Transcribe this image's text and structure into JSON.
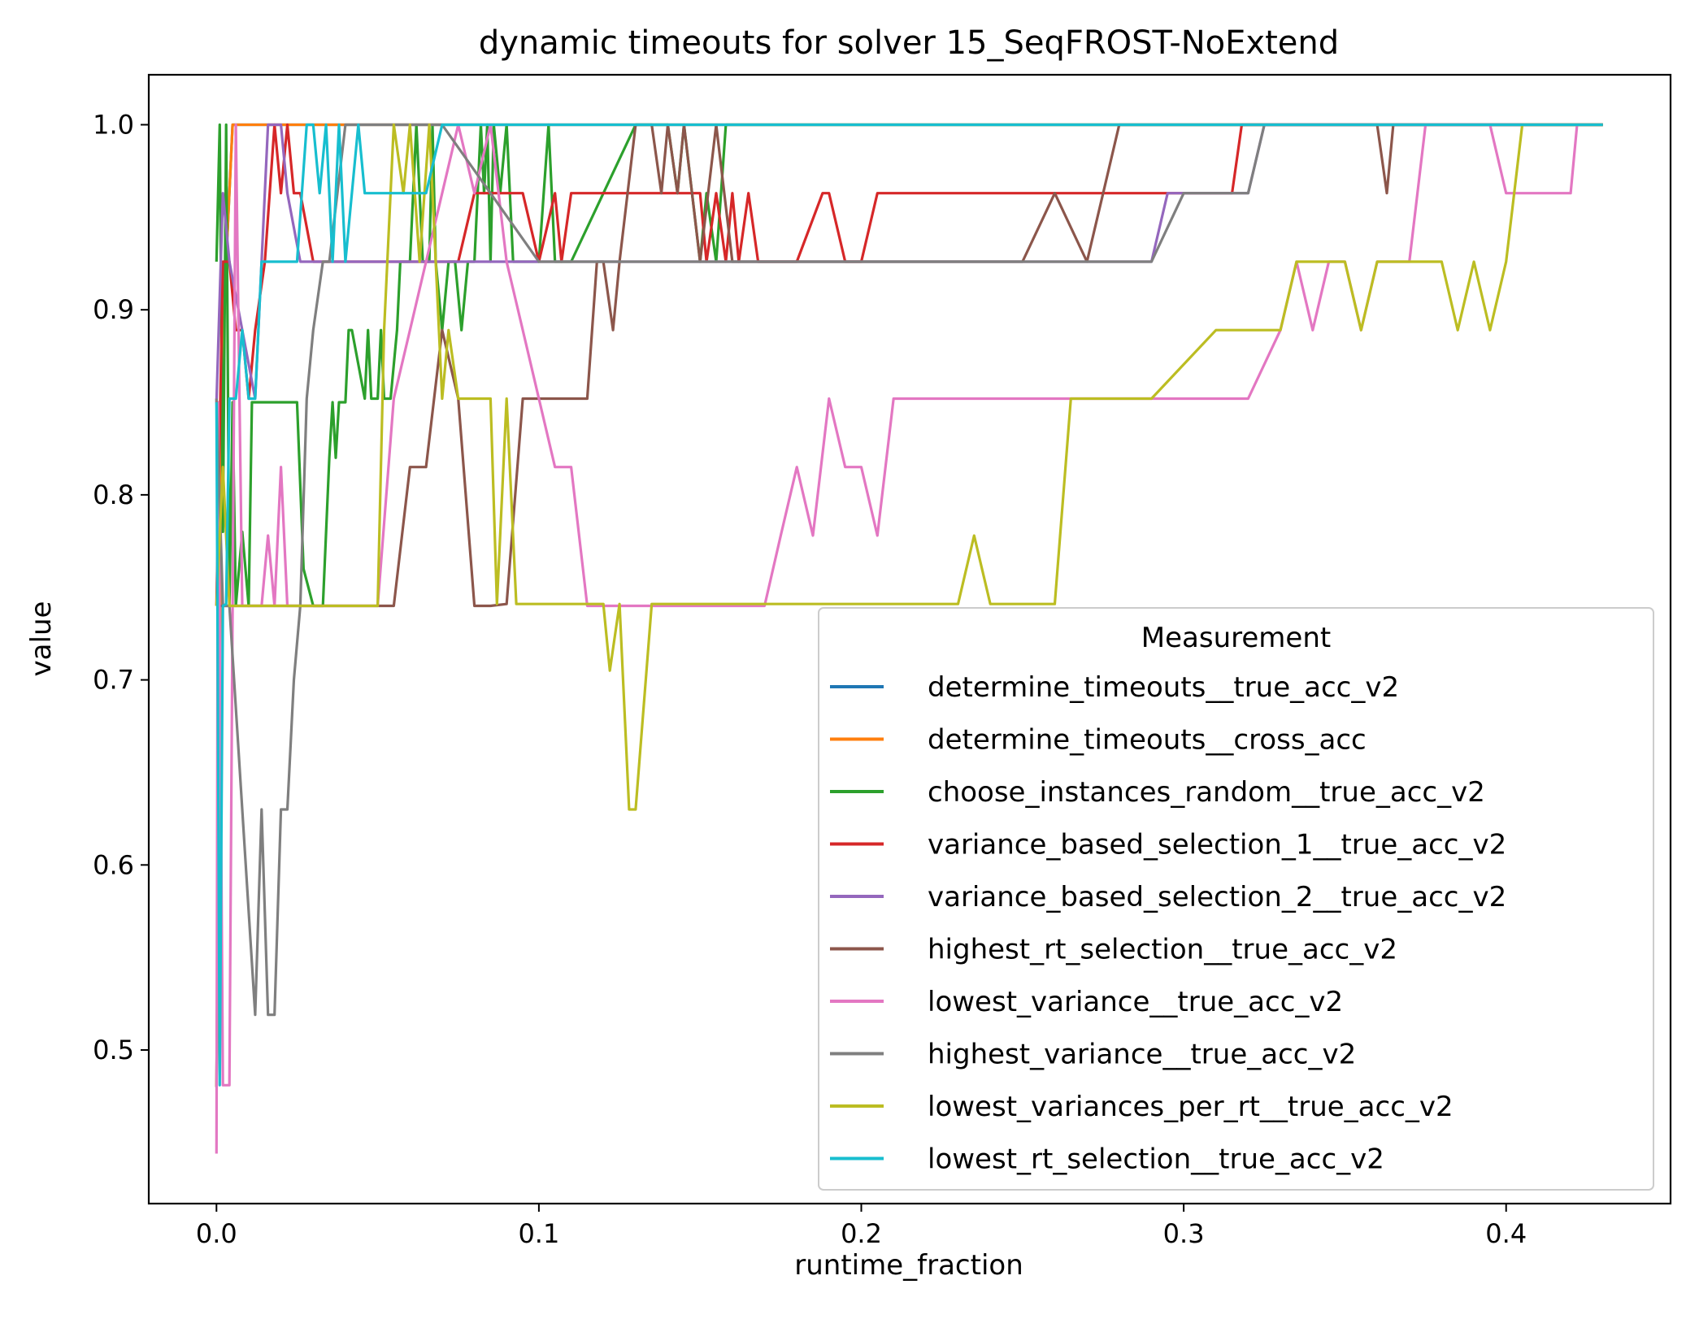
{
  "chart_data": {
    "type": "line",
    "title": "dynamic timeouts for solver 15_SeqFROST-NoExtend",
    "xlabel": "runtime_fraction",
    "ylabel": "value",
    "xlim": [
      -0.021,
      0.451
    ],
    "ylim": [
      0.417,
      1.027
    ],
    "xticks": [
      0.0,
      0.1,
      0.2,
      0.3,
      0.4
    ],
    "xtick_labels": [
      "0.0",
      "0.1",
      "0.2",
      "0.3",
      "0.4"
    ],
    "yticks": [
      0.5,
      0.6,
      0.7,
      0.8,
      0.9,
      1.0
    ],
    "ytick_labels": [
      "0.5",
      "0.6",
      "0.7",
      "0.8",
      "0.9",
      "1.0"
    ],
    "grid": false,
    "legend": {
      "title": "Measurement",
      "placement": "lower-right"
    },
    "series": [
      {
        "name": "determine_timeouts__true_acc_v2",
        "color": "#1f77b4",
        "x": [
          0,
          0.001,
          0.0015,
          0.003,
          0.005,
          0.43
        ],
        "y": [
          0.48,
          0.7,
          0.85,
          0.926,
          1.0,
          1.0
        ]
      },
      {
        "name": "determine_timeouts__cross_acc",
        "color": "#ff7f0e",
        "x": [
          0,
          0.001,
          0.0015,
          0.003,
          0.005,
          0.43
        ],
        "y": [
          0.48,
          0.7,
          0.85,
          0.926,
          1.0,
          1.0
        ]
      },
      {
        "name": "choose_instances_random__true_acc_v2",
        "color": "#2ca02c",
        "x": [
          0,
          0.001,
          0.002,
          0.003,
          0.004,
          0.005,
          0.006,
          0.008,
          0.01,
          0.011,
          0.012,
          0.015,
          0.025,
          0.027,
          0.03,
          0.033,
          0.035,
          0.036,
          0.037,
          0.038,
          0.04,
          0.041,
          0.042,
          0.046,
          0.047,
          0.048,
          0.05,
          0.051,
          0.052,
          0.054,
          0.056,
          0.057,
          0.058,
          0.06,
          0.062,
          0.064,
          0.066,
          0.067,
          0.068,
          0.07,
          0.072,
          0.074,
          0.076,
          0.078,
          0.08,
          0.082,
          0.083,
          0.084,
          0.085,
          0.086,
          0.088,
          0.09,
          0.092,
          0.1,
          0.103,
          0.105,
          0.11,
          0.13,
          0.14,
          0.143,
          0.145,
          0.15,
          0.152,
          0.155,
          0.158,
          0.43
        ],
        "y": [
          0.926,
          1.0,
          0.78,
          1.0,
          0.74,
          0.85,
          0.74,
          0.78,
          0.74,
          0.85,
          0.85,
          0.85,
          0.85,
          0.76,
          0.74,
          0.74,
          0.82,
          0.85,
          0.82,
          0.85,
          0.85,
          0.889,
          0.889,
          0.852,
          0.889,
          0.852,
          0.852,
          0.889,
          0.852,
          0.852,
          0.889,
          0.926,
          0.926,
          0.926,
          1.0,
          0.926,
          0.926,
          1.0,
          0.926,
          0.889,
          0.926,
          0.926,
          0.889,
          0.926,
          0.926,
          1.0,
          0.963,
          1.0,
          0.926,
          1.0,
          0.963,
          1.0,
          0.926,
          0.926,
          1.0,
          0.926,
          0.926,
          1.0,
          1.0,
          0.963,
          1.0,
          0.926,
          0.963,
          0.926,
          1.0,
          1.0
        ]
      },
      {
        "name": "variance_based_selection_1__true_acc_v2",
        "color": "#d62728",
        "x": [
          0,
          0.002,
          0.004,
          0.006,
          0.008,
          0.01,
          0.012,
          0.015,
          0.018,
          0.02,
          0.022,
          0.024,
          0.026,
          0.03,
          0.035,
          0.04,
          0.045,
          0.05,
          0.055,
          0.06,
          0.065,
          0.07,
          0.075,
          0.08,
          0.09,
          0.095,
          0.1,
          0.105,
          0.107,
          0.11,
          0.112,
          0.115,
          0.15,
          0.152,
          0.155,
          0.158,
          0.16,
          0.162,
          0.165,
          0.168,
          0.17,
          0.172,
          0.18,
          0.188,
          0.19,
          0.195,
          0.2,
          0.205,
          0.21,
          0.22,
          0.23,
          0.24,
          0.25,
          0.26,
          0.27,
          0.28,
          0.29,
          0.3,
          0.31,
          0.315,
          0.318,
          0.32,
          0.43
        ],
        "y": [
          0.74,
          0.926,
          0.926,
          0.889,
          0.889,
          0.852,
          0.889,
          0.926,
          1.0,
          0.963,
          1.0,
          0.963,
          0.963,
          0.926,
          0.926,
          0.926,
          0.926,
          0.926,
          0.926,
          0.926,
          0.926,
          0.926,
          0.926,
          0.963,
          0.963,
          0.963,
          0.926,
          0.963,
          0.926,
          0.963,
          0.963,
          0.963,
          0.963,
          0.926,
          0.963,
          0.926,
          0.963,
          0.926,
          0.963,
          0.926,
          0.926,
          0.926,
          0.926,
          0.963,
          0.963,
          0.926,
          0.926,
          0.963,
          0.963,
          0.963,
          0.963,
          0.963,
          0.963,
          0.963,
          0.963,
          0.963,
          0.963,
          0.963,
          0.963,
          0.963,
          1.0,
          1.0,
          1.0
        ]
      },
      {
        "name": "variance_based_selection_2__true_acc_v2",
        "color": "#9467bd",
        "x": [
          0,
          0.002,
          0.004,
          0.008,
          0.012,
          0.016,
          0.018,
          0.02,
          0.022,
          0.026,
          0.04,
          0.06,
          0.08,
          0.1,
          0.2,
          0.29,
          0.295,
          0.3,
          0.31,
          0.32,
          0.325,
          0.43
        ],
        "y": [
          0.85,
          0.963,
          0.926,
          0.889,
          0.852,
          1.0,
          1.0,
          1.0,
          0.963,
          0.926,
          0.926,
          0.926,
          0.926,
          0.926,
          0.926,
          0.926,
          0.963,
          0.963,
          0.963,
          0.963,
          1.0,
          1.0
        ]
      },
      {
        "name": "highest_rt_selection__true_acc_v2",
        "color": "#8c564b",
        "x": [
          0,
          0.002,
          0.004,
          0.01,
          0.02,
          0.03,
          0.04,
          0.055,
          0.06,
          0.065,
          0.07,
          0.075,
          0.08,
          0.085,
          0.09,
          0.095,
          0.1,
          0.11,
          0.115,
          0.118,
          0.12,
          0.123,
          0.125,
          0.13,
          0.135,
          0.138,
          0.14,
          0.143,
          0.145,
          0.15,
          0.155,
          0.16,
          0.165,
          0.17,
          0.2,
          0.25,
          0.26,
          0.27,
          0.275,
          0.28,
          0.33,
          0.34,
          0.355,
          0.36,
          0.363,
          0.365,
          0.43
        ],
        "y": [
          0.74,
          0.74,
          0.74,
          0.74,
          0.74,
          0.74,
          0.74,
          0.74,
          0.815,
          0.815,
          0.889,
          0.852,
          0.74,
          0.74,
          0.741,
          0.852,
          0.852,
          0.852,
          0.852,
          0.926,
          0.926,
          0.889,
          0.926,
          1.0,
          1.0,
          0.963,
          1.0,
          0.963,
          1.0,
          0.926,
          1.0,
          0.926,
          0.926,
          0.926,
          0.926,
          0.926,
          0.963,
          0.926,
          0.963,
          1.0,
          1.0,
          1.0,
          1.0,
          1.0,
          0.963,
          1.0,
          1.0
        ]
      },
      {
        "name": "lowest_variance__true_acc_v2",
        "color": "#e377c2",
        "x": [
          0,
          0.0005,
          0.002,
          0.004,
          0.006,
          0.008,
          0.01,
          0.012,
          0.014,
          0.016,
          0.018,
          0.02,
          0.022,
          0.025,
          0.035,
          0.05,
          0.055,
          0.06,
          0.065,
          0.07,
          0.075,
          0.08,
          0.085,
          0.09,
          0.095,
          0.1,
          0.105,
          0.11,
          0.115,
          0.12,
          0.17,
          0.175,
          0.18,
          0.185,
          0.19,
          0.195,
          0.2,
          0.205,
          0.21,
          0.31,
          0.32,
          0.33,
          0.335,
          0.34,
          0.345,
          0.35,
          0.355,
          0.36,
          0.37,
          0.375,
          0.38,
          0.395,
          0.4,
          0.41,
          0.42,
          0.422
        ],
        "y": [
          0.444,
          0.85,
          0.481,
          0.481,
          1.0,
          0.74,
          0.74,
          0.74,
          0.74,
          0.778,
          0.74,
          0.815,
          0.74,
          0.74,
          0.74,
          0.74,
          0.852,
          0.889,
          0.926,
          0.963,
          1.0,
          0.963,
          1.0,
          0.926,
          0.889,
          0.852,
          0.815,
          0.815,
          0.74,
          0.74,
          0.74,
          0.778,
          0.815,
          0.778,
          0.852,
          0.815,
          0.815,
          0.778,
          0.852,
          0.852,
          0.852,
          0.889,
          0.926,
          0.889,
          0.926,
          0.926,
          0.889,
          0.926,
          0.926,
          1.0,
          1.0,
          1.0,
          0.963,
          0.963,
          0.963,
          1.0
        ]
      },
      {
        "name": "highest_variance__true_acc_v2",
        "color": "#7f7f7f",
        "x": [
          0,
          0.002,
          0.004,
          0.008,
          0.012,
          0.014,
          0.016,
          0.018,
          0.02,
          0.022,
          0.024,
          0.026,
          0.028,
          0.03,
          0.033,
          0.035,
          0.04,
          0.045,
          0.05,
          0.06,
          0.065,
          0.07,
          0.1,
          0.2,
          0.29,
          0.3,
          0.32,
          0.325,
          0.43
        ],
        "y": [
          0.852,
          0.74,
          0.74,
          0.63,
          0.519,
          0.63,
          0.519,
          0.519,
          0.63,
          0.63,
          0.7,
          0.74,
          0.852,
          0.889,
          0.926,
          0.926,
          1.0,
          1.0,
          1.0,
          1.0,
          1.0,
          1.0,
          0.926,
          0.926,
          0.926,
          0.963,
          0.963,
          1.0,
          1.0
        ]
      },
      {
        "name": "lowest_variances_per_rt__true_acc_v2",
        "color": "#bcbd22",
        "x": [
          0,
          0.002,
          0.004,
          0.01,
          0.02,
          0.03,
          0.05,
          0.052,
          0.055,
          0.058,
          0.06,
          0.063,
          0.066,
          0.07,
          0.072,
          0.075,
          0.08,
          0.085,
          0.087,
          0.09,
          0.093,
          0.1,
          0.12,
          0.122,
          0.125,
          0.128,
          0.13,
          0.135,
          0.14,
          0.15,
          0.2,
          0.23,
          0.235,
          0.24,
          0.245,
          0.25,
          0.26,
          0.265,
          0.29,
          0.31,
          0.315,
          0.33,
          0.335,
          0.34,
          0.35,
          0.355,
          0.36,
          0.37,
          0.38,
          0.385,
          0.39,
          0.395,
          0.4,
          0.405,
          0.43
        ],
        "y": [
          0.74,
          0.815,
          0.74,
          0.74,
          0.74,
          0.74,
          0.74,
          0.889,
          1.0,
          0.963,
          1.0,
          0.926,
          1.0,
          0.852,
          0.889,
          0.852,
          0.852,
          0.852,
          0.741,
          0.852,
          0.741,
          0.741,
          0.741,
          0.705,
          0.741,
          0.63,
          0.63,
          0.741,
          0.741,
          0.741,
          0.741,
          0.741,
          0.778,
          0.741,
          0.741,
          0.741,
          0.741,
          0.852,
          0.852,
          0.889,
          0.889,
          0.889,
          0.926,
          0.926,
          0.926,
          0.889,
          0.926,
          0.926,
          0.926,
          0.889,
          0.926,
          0.889,
          0.926,
          1.0,
          1.0
        ]
      },
      {
        "name": "lowest_rt_selection__true_acc_v2",
        "color": "#17becf",
        "x": [
          0,
          0.001,
          0.002,
          0.003,
          0.004,
          0.006,
          0.008,
          0.01,
          0.012,
          0.014,
          0.016,
          0.025,
          0.028,
          0.03,
          0.032,
          0.034,
          0.036,
          0.038,
          0.04,
          0.044,
          0.046,
          0.065,
          0.07,
          0.08,
          0.1,
          0.43
        ],
        "y": [
          0.85,
          0.481,
          0.74,
          0.741,
          0.852,
          0.852,
          0.889,
          0.852,
          0.852,
          0.926,
          0.926,
          0.926,
          1.0,
          1.0,
          0.963,
          1.0,
          0.926,
          1.0,
          0.926,
          1.0,
          0.963,
          0.963,
          1.0,
          1.0,
          1.0,
          1.0
        ]
      }
    ]
  }
}
